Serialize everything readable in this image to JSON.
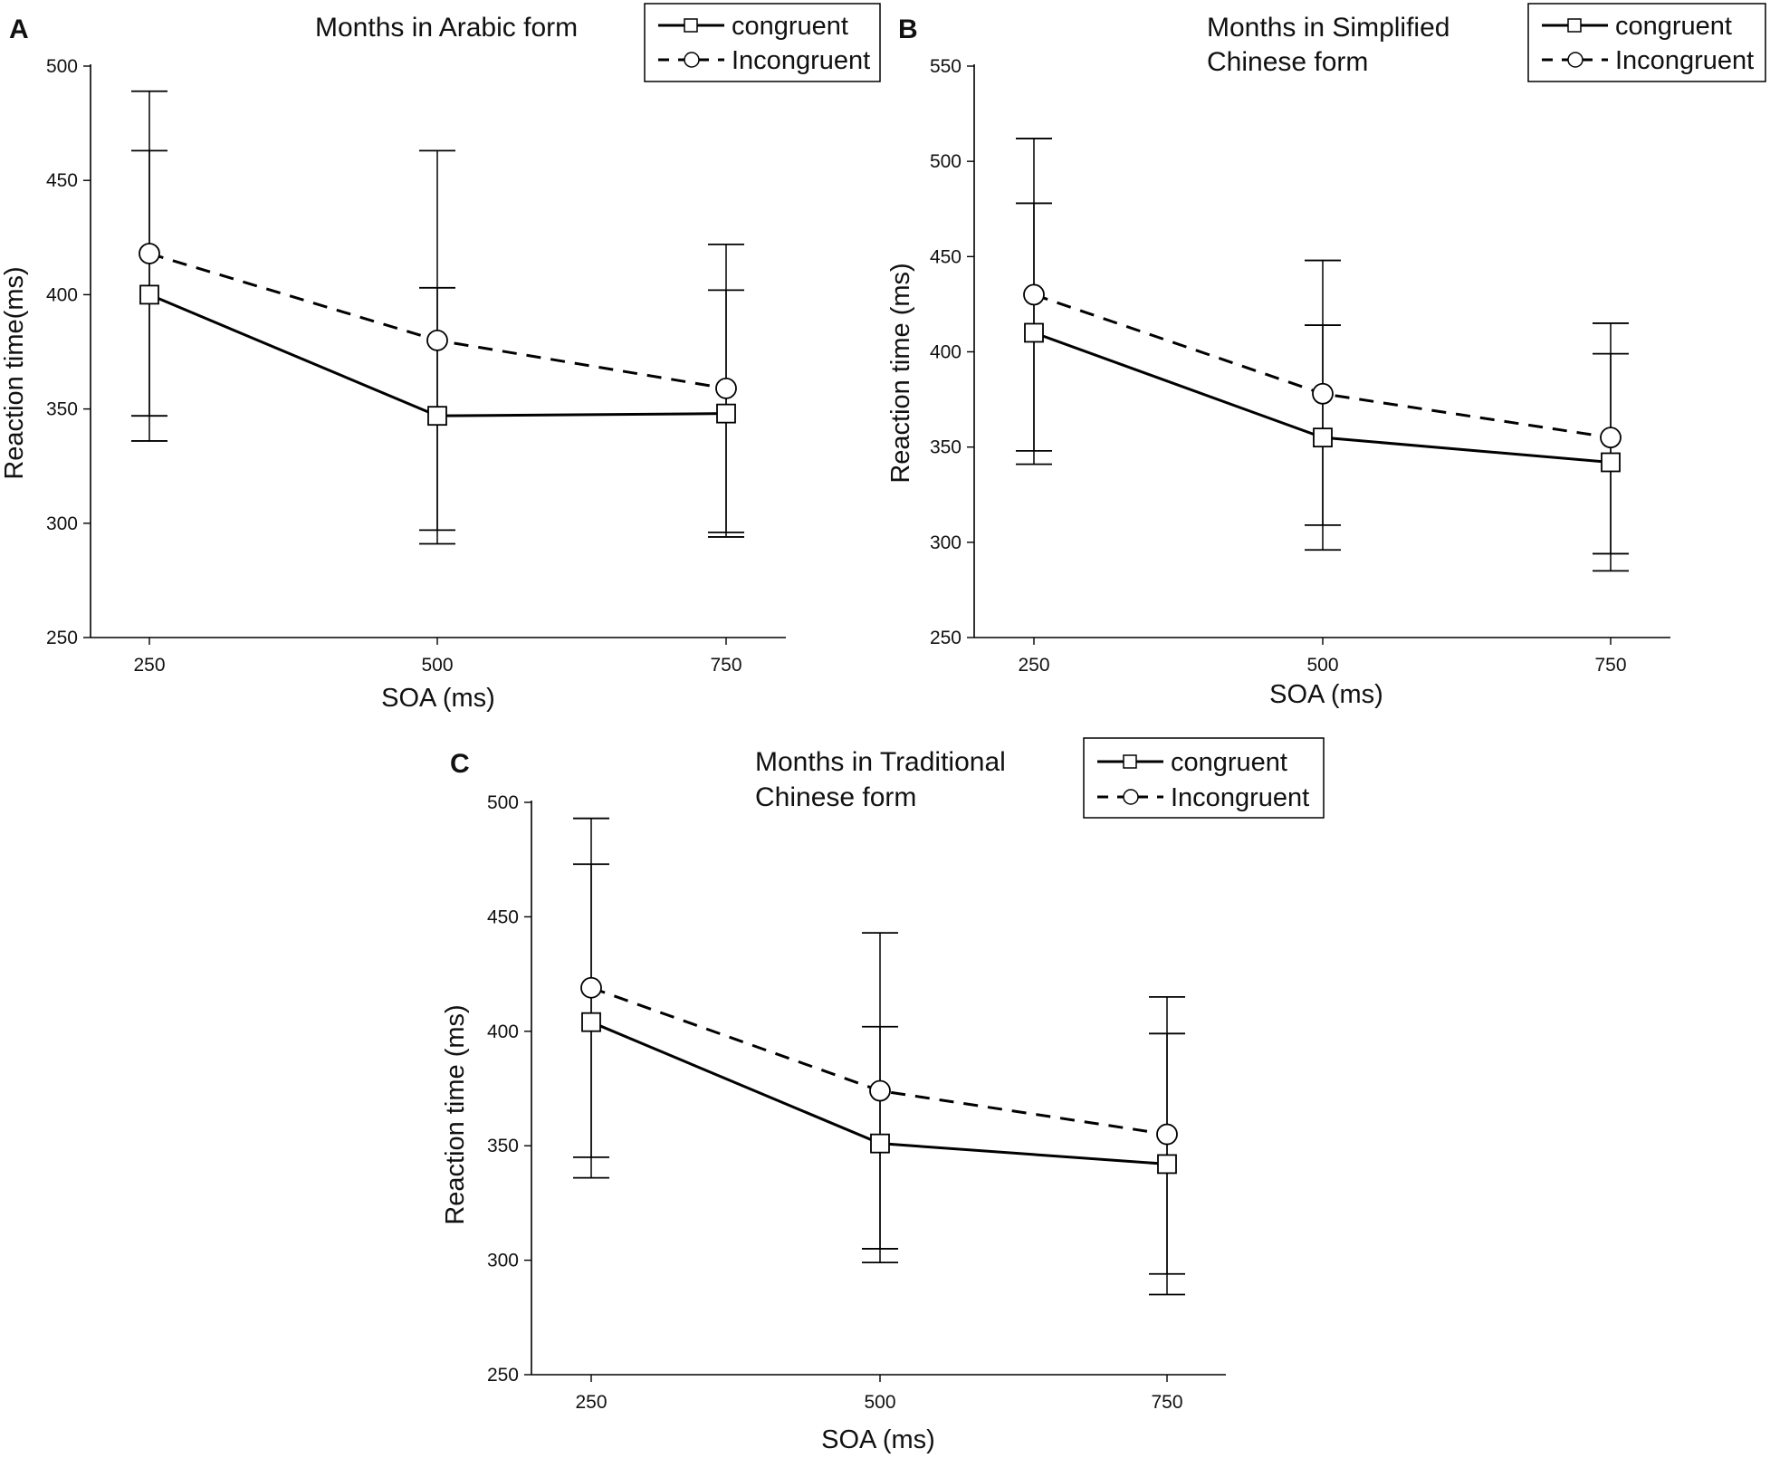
{
  "figure": {
    "panels": [
      {
        "letter": "A",
        "title": [
          "Months in Arabic form"
        ],
        "ylabel": "Reaction time(ms)",
        "xlabel": "SOA (ms)"
      },
      {
        "letter": "B",
        "title": [
          "Months in Simplified",
          "Chinese form"
        ],
        "ylabel": "Reaction time (ms)",
        "xlabel": "SOA (ms)"
      },
      {
        "letter": "C",
        "title": [
          "Months in Traditional",
          "Chinese form"
        ],
        "ylabel": "Reaction time (ms)",
        "xlabel": "SOA (ms)"
      }
    ],
    "legend": {
      "congruent": "congruent",
      "incongruent": "Incongruent"
    }
  },
  "chart_data": [
    {
      "type": "line",
      "panel": "A",
      "title": "Months in Arabic form",
      "xlabel": "SOA (ms)",
      "ylabel": "Reaction time(ms)",
      "categories": [
        "250",
        "500",
        "750"
      ],
      "ylim": [
        250,
        500
      ],
      "yticks": [
        250,
        300,
        350,
        400,
        450,
        500
      ],
      "grid": false,
      "legend_position": "top-right",
      "series": [
        {
          "name": "congruent",
          "style": "solid",
          "marker": "square",
          "values": [
            400,
            347,
            348
          ],
          "err_low": [
            336,
            291,
            294
          ],
          "err_high": [
            463,
            403,
            402
          ]
        },
        {
          "name": "Incongruent",
          "style": "dashed",
          "marker": "circle",
          "values": [
            418,
            380,
            359
          ],
          "err_low": [
            347,
            297,
            296
          ],
          "err_high": [
            489,
            463,
            422
          ]
        }
      ]
    },
    {
      "type": "line",
      "panel": "B",
      "title": "Months in Simplified Chinese form",
      "xlabel": "SOA (ms)",
      "ylabel": "Reaction time (ms)",
      "categories": [
        "250",
        "500",
        "750"
      ],
      "ylim": [
        250,
        550
      ],
      "yticks": [
        250,
        300,
        350,
        400,
        450,
        500,
        550
      ],
      "grid": false,
      "legend_position": "top-right",
      "series": [
        {
          "name": "congruent",
          "style": "solid",
          "marker": "square",
          "values": [
            410,
            355,
            342
          ],
          "err_low": [
            341,
            296,
            285
          ],
          "err_high": [
            478,
            414,
            399
          ]
        },
        {
          "name": "Incongruent",
          "style": "dashed",
          "marker": "circle",
          "values": [
            430,
            378,
            355
          ],
          "err_low": [
            348,
            309,
            294
          ],
          "err_high": [
            512,
            448,
            415
          ]
        }
      ]
    },
    {
      "type": "line",
      "panel": "C",
      "title": "Months in Traditional Chinese form",
      "xlabel": "SOA (ms)",
      "ylabel": "Reaction time (ms)",
      "categories": [
        "250",
        "500",
        "750"
      ],
      "ylim": [
        250,
        500
      ],
      "yticks": [
        250,
        300,
        350,
        400,
        450,
        500
      ],
      "grid": false,
      "legend_position": "top-right",
      "series": [
        {
          "name": "congruent",
          "style": "solid",
          "marker": "square",
          "values": [
            404,
            351,
            342
          ],
          "err_low": [
            336,
            299,
            285
          ],
          "err_high": [
            473,
            402,
            399
          ]
        },
        {
          "name": "Incongruent",
          "style": "dashed",
          "marker": "circle",
          "values": [
            419,
            374,
            355
          ],
          "err_low": [
            345,
            305,
            294
          ],
          "err_high": [
            493,
            443,
            415
          ]
        }
      ]
    }
  ]
}
